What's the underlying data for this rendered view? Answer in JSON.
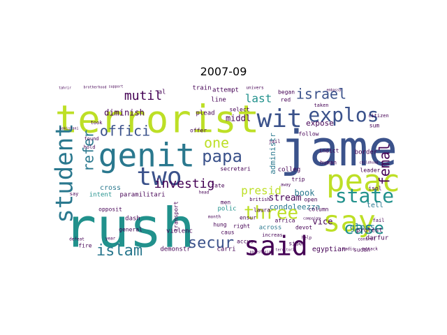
{
  "chart_data": {
    "type": "wordcloud",
    "title": "2007-09",
    "words": [
      {
        "text": "jame",
        "weight": 100,
        "color": "#3b528b"
      },
      {
        "text": "rush",
        "weight": 92,
        "color": "#21918c"
      },
      {
        "text": "terrorist",
        "weight": 70,
        "color": "#bddf26"
      },
      {
        "text": "genit",
        "weight": 58,
        "color": "#2a788e"
      },
      {
        "text": "peac",
        "weight": 56,
        "color": "#bddf26"
      },
      {
        "text": "say",
        "weight": 54,
        "color": "#bddf26"
      },
      {
        "text": "said",
        "weight": 50,
        "color": "#440154"
      },
      {
        "text": "wit",
        "weight": 48,
        "color": "#3b528b"
      },
      {
        "text": "two",
        "weight": 48,
        "color": "#3b528b"
      },
      {
        "text": "student",
        "weight": 46,
        "color": "#2a788e"
      },
      {
        "text": "explos",
        "weight": 42,
        "color": "#3b528b"
      },
      {
        "text": "state",
        "weight": 38,
        "color": "#21918c"
      },
      {
        "text": "three",
        "weight": 36,
        "color": "#bddf26"
      },
      {
        "text": "papa",
        "weight": 34,
        "color": "#3b528b"
      },
      {
        "text": "islam",
        "weight": 30,
        "color": "#2a788e"
      },
      {
        "text": "secur",
        "weight": 30,
        "color": "#3b528b"
      },
      {
        "text": "case",
        "weight": 30,
        "color": "#21918c"
      },
      {
        "text": "offici",
        "weight": 30,
        "color": "#3b528b"
      },
      {
        "text": "refer",
        "weight": 30,
        "color": "#2a788e"
      },
      {
        "text": "femal",
        "weight": 28,
        "color": "#440154"
      },
      {
        "text": "israel",
        "weight": 28,
        "color": "#3b528b"
      },
      {
        "text": "one",
        "weight": 28,
        "color": "#bddf26"
      },
      {
        "text": "investig",
        "weight": 26,
        "color": "#440154"
      },
      {
        "text": "mutil",
        "weight": 26,
        "color": "#440154"
      },
      {
        "text": "presid",
        "weight": 22,
        "color": "#bddf26"
      },
      {
        "text": "last",
        "weight": 22,
        "color": "#21918c"
      },
      {
        "text": "stream",
        "weight": 18,
        "color": "#440154"
      },
      {
        "text": "middl",
        "weight": 16,
        "color": "#440154"
      },
      {
        "text": "administr",
        "weight": 16,
        "color": "#2a788e"
      },
      {
        "text": "expose",
        "weight": 14,
        "color": "#440154"
      },
      {
        "text": "diminish",
        "weight": 14,
        "color": "#440154"
      },
      {
        "text": "condoleezza",
        "weight": 14,
        "color": "#2a788e"
      },
      {
        "text": "book",
        "weight": 14,
        "color": "#2a788e"
      },
      {
        "text": "gloss",
        "weight": 14,
        "color": "#2a788e"
      },
      {
        "text": "vice",
        "weight": 14,
        "color": "#440154"
      },
      {
        "text": "egyptian",
        "weight": 12,
        "color": "#440154"
      },
      {
        "text": "intent",
        "weight": 12,
        "color": "#21918c"
      },
      {
        "text": "paramilitari",
        "weight": 12,
        "color": "#440154"
      },
      {
        "text": "cross",
        "weight": 12,
        "color": "#2a788e"
      },
      {
        "text": "polic",
        "weight": 12,
        "color": "#21918c"
      },
      {
        "text": "colleg",
        "weight": 12,
        "color": "#440154"
      },
      {
        "text": "tell",
        "weight": 12,
        "color": "#2a788e"
      },
      {
        "text": "border",
        "weight": 10,
        "color": "#440154"
      },
      {
        "text": "protest",
        "weight": 10,
        "color": "#440154"
      },
      {
        "text": "darfur",
        "weight": 10,
        "color": "#440154"
      },
      {
        "text": "across",
        "weight": 10,
        "color": "#2a788e"
      },
      {
        "text": "carri",
        "weight": 10,
        "color": "#440154"
      },
      {
        "text": "demonstr",
        "weight": 10,
        "color": "#440154"
      },
      {
        "text": "violenc",
        "weight": 10,
        "color": "#440154"
      },
      {
        "text": "dash",
        "weight": 10,
        "color": "#440154"
      },
      {
        "text": "opposit",
        "weight": 9,
        "color": "#440154"
      },
      {
        "text": "fire",
        "weight": 9,
        "color": "#440154"
      },
      {
        "text": "general",
        "weight": 9,
        "color": "#440154"
      },
      {
        "text": "al",
        "weight": 9,
        "color": "#440154"
      },
      {
        "text": "train",
        "weight": 9,
        "color": "#440154"
      },
      {
        "text": "attempt",
        "weight": 9,
        "color": "#440154"
      },
      {
        "text": "line",
        "weight": 9,
        "color": "#440154"
      },
      {
        "text": "plead",
        "weight": 9,
        "color": "#440154"
      },
      {
        "text": "men",
        "weight": 9,
        "color": "#440154"
      },
      {
        "text": "laura",
        "weight": 9,
        "color": "#440154"
      },
      {
        "text": "secretari",
        "weight": 9,
        "color": "#440154"
      },
      {
        "text": "transport",
        "weight": 9,
        "color": "#440154"
      },
      {
        "text": "offer",
        "weight": 9,
        "color": "#440154"
      },
      {
        "text": "select",
        "weight": 9,
        "color": "#440154"
      },
      {
        "text": "indict",
        "weight": 9,
        "color": "#440154"
      },
      {
        "text": "human",
        "weight": 9,
        "color": "#440154"
      },
      {
        "text": "follow",
        "weight": 9,
        "color": "#440154"
      },
      {
        "text": "leader",
        "weight": 9,
        "color": "#440154"
      },
      {
        "text": "africa",
        "weight": 9,
        "color": "#440154"
      },
      {
        "text": "devot",
        "weight": 9,
        "color": "#440154"
      },
      {
        "text": "side",
        "weight": 9,
        "color": "#440154"
      },
      {
        "text": "open",
        "weight": 9,
        "color": "#440154"
      },
      {
        "text": "sudan",
        "weight": 8,
        "color": "#440154"
      },
      {
        "text": "hung",
        "weight": 8,
        "color": "#440154"
      },
      {
        "text": "right",
        "weight": 8,
        "color": "#440154"
      },
      {
        "text": "accus",
        "weight": 8,
        "color": "#440154"
      },
      {
        "text": "ensur",
        "weight": 8,
        "color": "#440154"
      },
      {
        "text": "trip",
        "weight": 8,
        "color": "#440154"
      },
      {
        "text": "fate",
        "weight": 8,
        "color": "#440154"
      },
      {
        "text": "isol",
        "weight": 8,
        "color": "#440154"
      },
      {
        "text": "column",
        "weight": 8,
        "color": "#440154"
      },
      {
        "text": "caus",
        "weight": 8,
        "color": "#440154"
      },
      {
        "text": "began",
        "weight": 8,
        "color": "#440154"
      },
      {
        "text": "red",
        "weight": 8,
        "color": "#440154"
      },
      {
        "text": "jail",
        "weight": 7,
        "color": "#440154"
      },
      {
        "text": "sum",
        "weight": 7,
        "color": "#440154"
      },
      {
        "text": "citizen",
        "weight": 7,
        "color": "#440154"
      },
      {
        "text": "found",
        "weight": 7,
        "color": "#440154"
      },
      {
        "text": "hold",
        "weight": 7,
        "color": "#440154"
      },
      {
        "text": "took",
        "weight": 7,
        "color": "#440154"
      },
      {
        "text": "say",
        "weight": 7,
        "color": "#440154"
      },
      {
        "text": "british",
        "weight": 7,
        "color": "#440154"
      },
      {
        "text": "taken",
        "weight": 7,
        "color": "#440154"
      },
      {
        "text": "fail",
        "weight": 7,
        "color": "#440154"
      },
      {
        "text": "increas",
        "weight": 7,
        "color": "#440154"
      },
      {
        "text": "control",
        "weight": 6,
        "color": "#440154"
      },
      {
        "text": "radic",
        "weight": 6,
        "color": "#440154"
      },
      {
        "text": "attack",
        "weight": 6,
        "color": "#440154"
      },
      {
        "text": "help",
        "weight": 6,
        "color": "#440154"
      },
      {
        "text": "defeat",
        "weight": 6,
        "color": "#440154"
      },
      {
        "text": "univers",
        "weight": 6,
        "color": "#440154"
      },
      {
        "text": "year",
        "weight": 6,
        "color": "#440154"
      },
      {
        "text": "month",
        "weight": 6,
        "color": "#440154"
      },
      {
        "text": "head",
        "weight": 6,
        "color": "#440154"
      },
      {
        "text": "away",
        "weight": 6,
        "color": "#440154"
      },
      {
        "text": "pakistani",
        "weight": 5,
        "color": "#440154"
      },
      {
        "text": "tahrir",
        "weight": 5,
        "color": "#440154"
      },
      {
        "text": "brotherhood",
        "weight": 5,
        "color": "#440154"
      },
      {
        "text": "support",
        "weight": 5,
        "color": "#440154"
      },
      {
        "text": "embassy",
        "weight": 5,
        "color": "#440154"
      },
      {
        "text": "palestinian",
        "weight": 5,
        "color": "#440154"
      },
      {
        "text": "territori",
        "weight": 5,
        "color": "#440154"
      },
      {
        "text": "campaign",
        "weight": 5,
        "color": "#440154"
      },
      {
        "text": "childhood",
        "weight": 5,
        "color": "#440154"
      }
    ]
  }
}
